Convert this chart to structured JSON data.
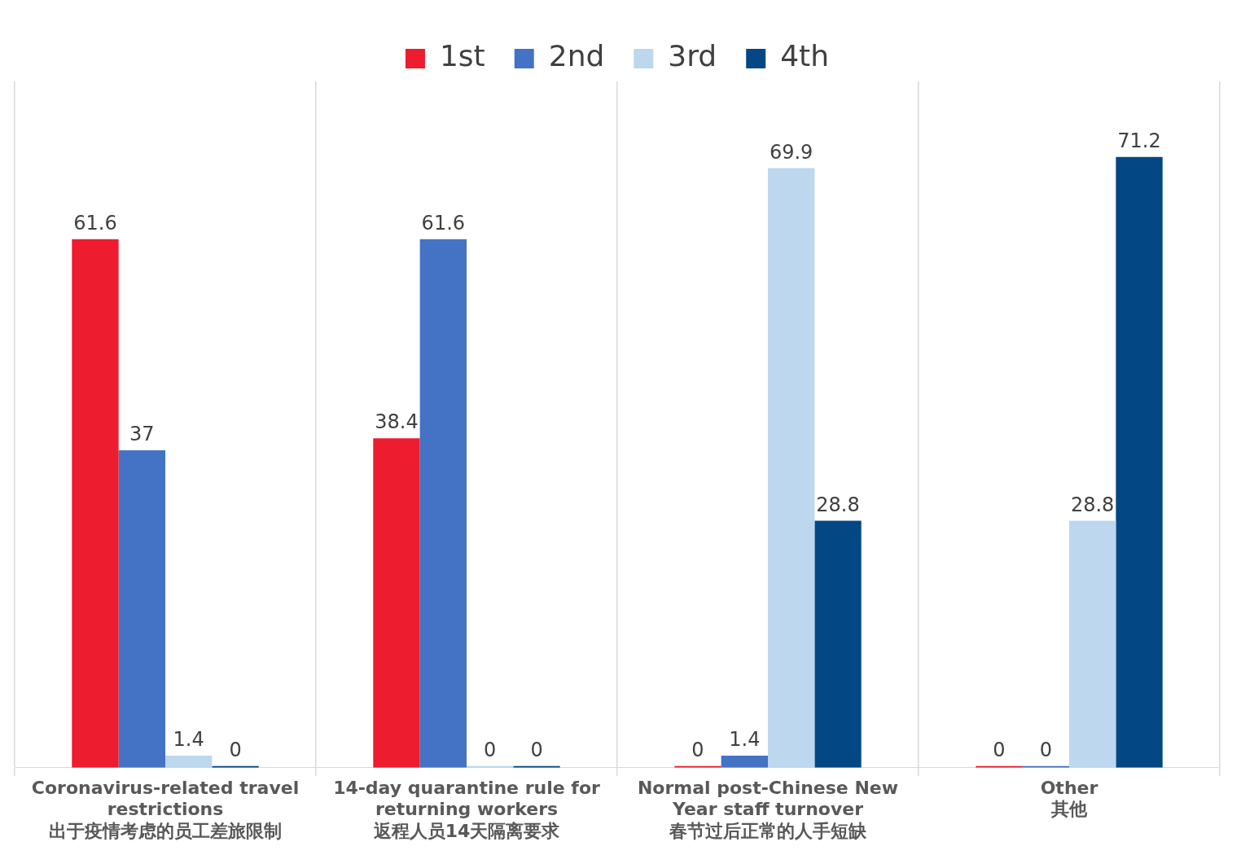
{
  "chart_data": {
    "type": "bar",
    "categories": [
      "Coronavirus-related travel restrictions\n出于疫情考虑的员工差旅限制",
      "14-day quarantine rule for returning workers\n返程人员14天隔离要求",
      "Normal post-Chinese New Year staff turnover\n春节过后正常的人手短缺",
      "Other\n其他"
    ],
    "series": [
      {
        "name": "1st",
        "color": "#ed1c2e",
        "values": [
          61.6,
          38.4,
          0,
          0
        ]
      },
      {
        "name": "2nd",
        "color": "#4472c4",
        "values": [
          37,
          61.6,
          1.4,
          0
        ]
      },
      {
        "name": "3rd",
        "color": "#bdd7ee",
        "values": [
          1.4,
          0,
          69.9,
          28.8
        ]
      },
      {
        "name": "4th",
        "color": "#044785",
        "values": [
          0,
          0,
          28.8,
          71.2
        ]
      }
    ],
    "data_labels": true,
    "legend": "top",
    "grid": "x"
  }
}
